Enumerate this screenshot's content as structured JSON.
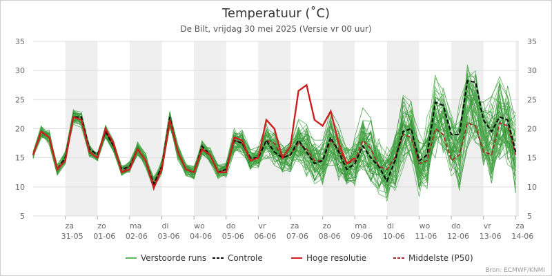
{
  "chart_data": {
    "type": "line",
    "title": "Temperatuur (˚C)",
    "subtitle": "De Bilt, vrijdag 30 mei 2025 (Versie vr 00 uur)",
    "credit": "Bron: ECMWF/KNMI",
    "ylim": [
      5,
      35
    ],
    "yticks": [
      5,
      10,
      15,
      20,
      25,
      30,
      35
    ],
    "xlim": [
      0,
      15.1
    ],
    "grid": true,
    "legend_position": "bottom",
    "day_labels": [
      {
        "day": "za",
        "date": "31-05",
        "x": 1
      },
      {
        "day": "zo",
        "date": "01-06",
        "x": 2
      },
      {
        "day": "ma",
        "date": "02-06",
        "x": 3
      },
      {
        "day": "di",
        "date": "03-06",
        "x": 4
      },
      {
        "day": "wo",
        "date": "04-06",
        "x": 5
      },
      {
        "day": "do",
        "date": "05-06",
        "x": 6
      },
      {
        "day": "vr",
        "date": "06-06",
        "x": 7
      },
      {
        "day": "za",
        "date": "07-06",
        "x": 8
      },
      {
        "day": "zo",
        "date": "08-06",
        "x": 9
      },
      {
        "day": "ma",
        "date": "09-06",
        "x": 10
      },
      {
        "day": "di",
        "date": "10-06",
        "x": 11
      },
      {
        "day": "wo",
        "date": "11-06",
        "x": 12
      },
      {
        "day": "do",
        "date": "12-06",
        "x": 13
      },
      {
        "day": "vr",
        "date": "13-06",
        "x": 14
      },
      {
        "day": "za",
        "date": "14-06",
        "x": 15
      }
    ],
    "shaded_days": [
      [
        1,
        2
      ],
      [
        3,
        4
      ],
      [
        5,
        6
      ],
      [
        7,
        8
      ],
      [
        9,
        10
      ],
      [
        11,
        12
      ],
      [
        13,
        14
      ],
      [
        15,
        15.1
      ]
    ],
    "legend": [
      {
        "label": "Verstoorde runs",
        "color": "#5cb85c",
        "style": "solid"
      },
      {
        "label": "Controle",
        "color": "#000000",
        "style": "dashed"
      },
      {
        "label": "Hoge resolutie",
        "color": "#cc1f1f",
        "style": "solid"
      },
      {
        "label": "Middelste (P50)",
        "color": "#a52a2a",
        "style": "dashed"
      }
    ],
    "colors": {
      "ensemble": "#4aa84a",
      "ensemble_dark": "#2f8f2f",
      "controle": "#000000",
      "hoge_resolutie": "#cc1f1f",
      "p50": "#a52a2a"
    },
    "x_base": [
      0,
      0.25,
      0.5,
      0.75,
      1,
      1.25,
      1.5,
      1.75,
      2,
      2.25,
      2.5,
      2.75,
      3,
      3.25,
      3.5,
      3.75,
      4,
      4.25,
      4.5,
      4.75,
      5,
      5.25,
      5.5,
      5.75,
      6,
      6.25,
      6.5,
      6.75,
      7,
      7.25,
      7.5,
      7.75,
      8,
      8.25,
      8.5,
      8.75,
      9,
      9.25,
      9.5,
      9.75,
      10,
      10.25,
      10.5,
      10.75,
      11,
      11.25,
      11.5,
      11.75,
      12,
      12.25,
      12.5,
      12.75,
      13,
      13.25,
      13.5,
      13.75,
      14,
      14.25,
      14.5,
      14.75,
      15
    ],
    "x_hires": [
      0,
      0.25,
      0.5,
      0.75,
      1,
      1.25,
      1.5,
      1.75,
      2,
      2.25,
      2.5,
      2.75,
      3,
      3.25,
      3.5,
      3.75,
      4,
      4.25,
      4.5,
      4.75,
      5,
      5.25,
      5.5,
      5.75,
      6,
      6.25,
      6.5,
      6.75,
      7,
      7.25,
      7.5,
      7.75,
      8,
      8.25,
      8.5,
      8.75,
      9,
      9.25,
      9.5,
      9.75,
      10
    ],
    "controle": [
      15.5,
      19.5,
      18.5,
      13,
      15,
      22,
      22,
      16.5,
      15.5,
      19.5,
      17,
      13,
      13.5,
      16.5,
      14.5,
      10.5,
      13.5,
      22,
      16,
      13,
      12.5,
      17,
      15.5,
      12.5,
      13,
      18,
      17.5,
      15,
      15,
      18,
      16,
      15,
      15.5,
      18,
      16,
      14,
      14.5,
      18.5,
      16,
      13,
      14,
      17,
      15,
      13.5,
      11,
      14.5,
      19.5,
      20,
      14.5,
      15.5,
      24.5,
      24,
      19,
      19,
      28.2,
      28,
      21.5,
      19.5,
      22,
      21.5,
      16
    ],
    "hoge_resolutie": [
      15.5,
      19.5,
      18.5,
      13,
      14.5,
      22,
      21.5,
      16,
      15,
      20,
      17.5,
      12.5,
      13,
      16.5,
      14.5,
      9.8,
      13,
      21.5,
      16,
      13,
      12.5,
      16.5,
      15.5,
      12.5,
      12.5,
      18.5,
      18,
      14.5,
      15,
      21.5,
      20,
      15,
      17,
      26.5,
      27.5,
      21.5,
      20.5,
      23,
      17.5,
      14,
      15
    ],
    "p50": [
      15.5,
      19.5,
      18.5,
      13,
      15,
      22,
      21.5,
      16,
      15,
      19.5,
      17,
      12.5,
      13.5,
      16.5,
      14.5,
      10.5,
      13.5,
      21.5,
      16,
      13,
      12.5,
      16.5,
      15.5,
      12.5,
      13,
      18,
      17.5,
      14.5,
      15,
      18,
      17.5,
      15,
      15.5,
      17.5,
      16.5,
      14.5,
      14.5,
      18,
      16.5,
      14,
      14.5,
      18,
      16.5,
      13.5,
      13,
      15,
      19,
      18.5,
      14,
      14.5,
      20,
      19,
      14.5,
      15.5,
      21,
      20.5,
      16,
      15.5,
      21,
      20.5,
      15.5
    ],
    "ensemble_members": 50,
    "ensemble_spread": [
      0.4,
      0.8,
      0.8,
      0.6,
      0.7,
      0.9,
      0.9,
      0.7,
      0.6,
      0.8,
      0.8,
      0.6,
      0.7,
      0.8,
      0.8,
      0.8,
      0.8,
      1,
      0.9,
      0.8,
      0.8,
      1,
      0.9,
      0.8,
      0.9,
      1.5,
      1.5,
      1.3,
      1.3,
      2,
      2,
      1.8,
      1.9,
      2.8,
      2.8,
      2.5,
      2.5,
      3.3,
      3.3,
      2.8,
      2.9,
      3.8,
      3.8,
      3.2,
      3.2,
      4.2,
      4.2,
      3.5,
      3.5,
      4.6,
      4.6,
      3.9,
      3.9,
      5,
      5,
      4.2,
      4.2,
      5.4,
      5.4,
      4.5,
      4.5
    ]
  }
}
